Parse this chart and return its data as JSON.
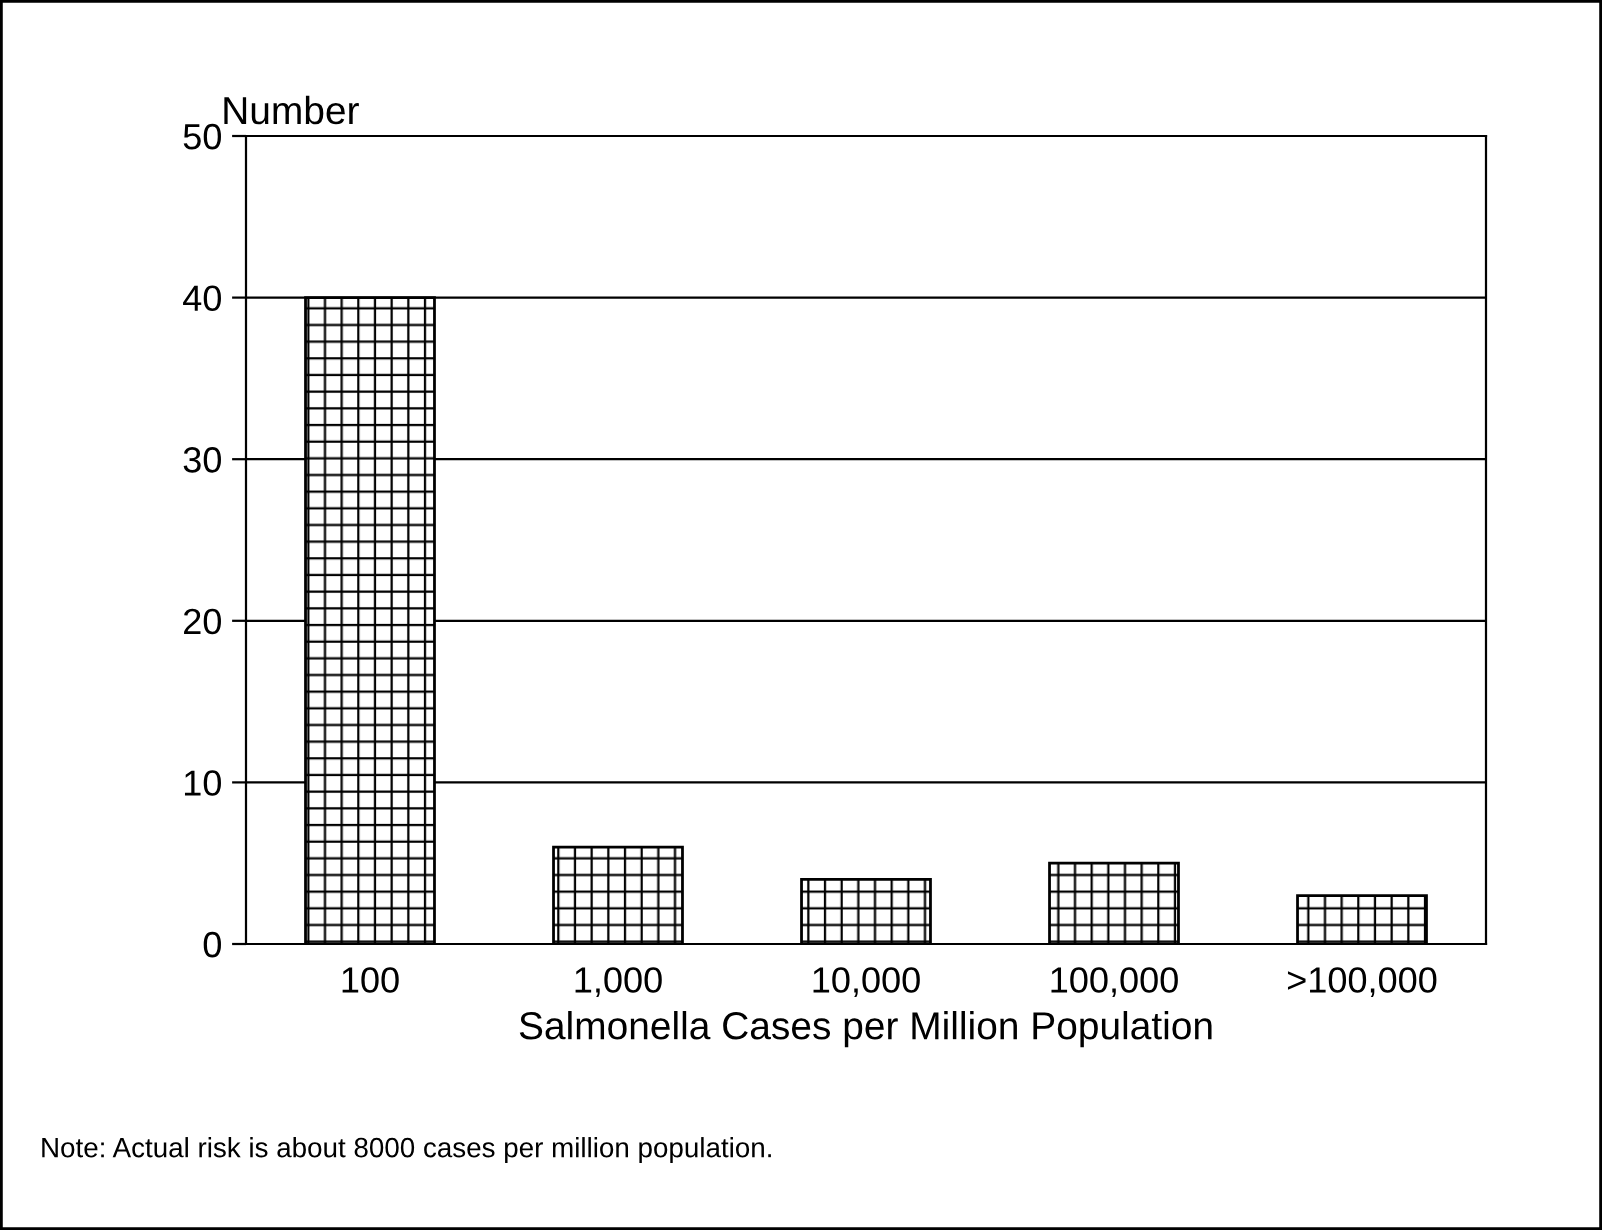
{
  "chart_data": {
    "type": "bar",
    "ylabel": "Number",
    "xlabel": "Salmonella Cases per Million Population",
    "categories": [
      "100",
      "1,000",
      "10,000",
      "100,000",
      ">100,000"
    ],
    "values": [
      40,
      6,
      4,
      5,
      3
    ],
    "color": "#000000",
    "ylim": [
      0,
      50
    ],
    "yticks": [
      0,
      10,
      20,
      30,
      40,
      50
    ],
    "grid": "y",
    "annotations": [
      "Note: Actual risk is about 8000 cases per million population."
    ]
  }
}
